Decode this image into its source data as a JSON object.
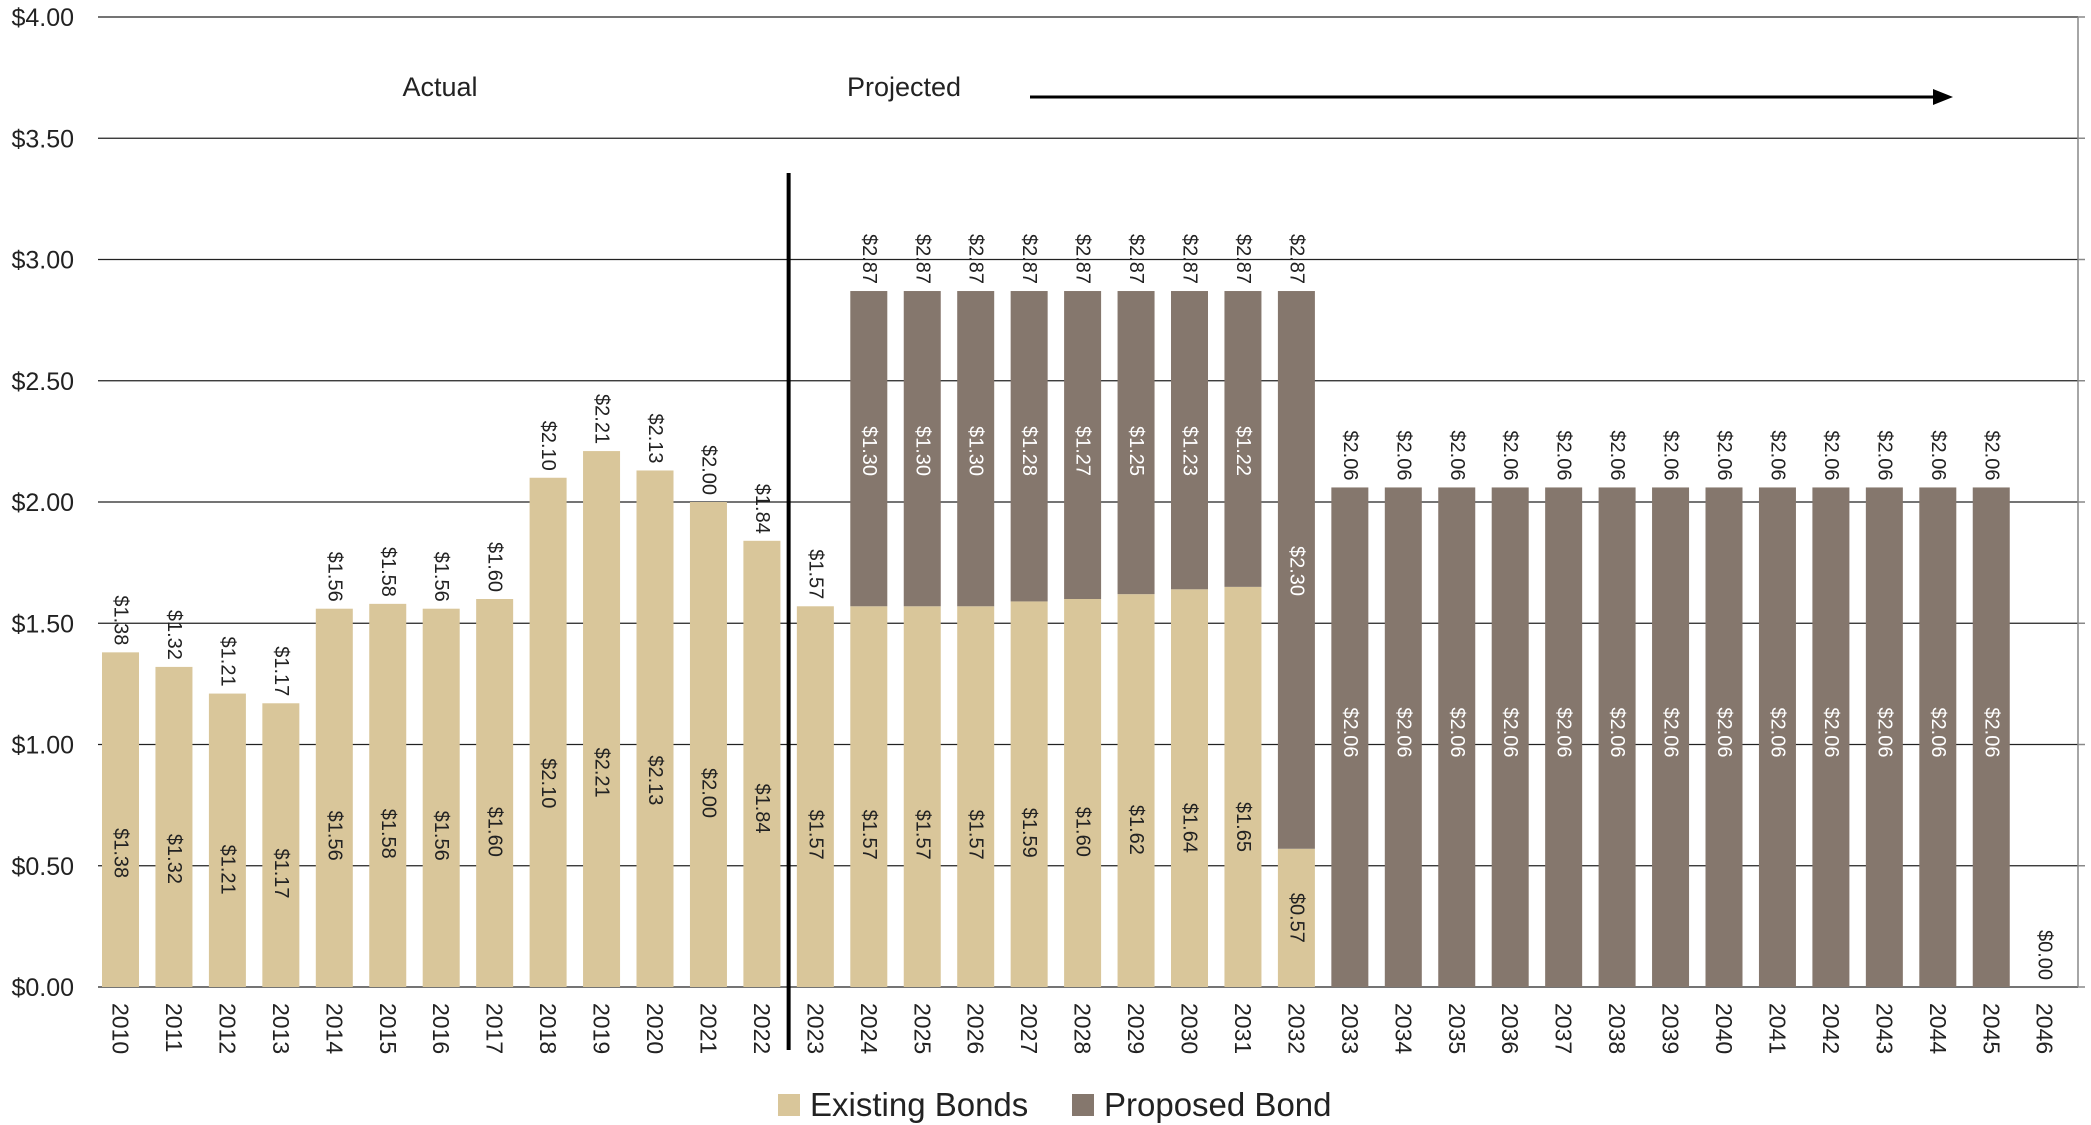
{
  "chart_data": {
    "type": "bar",
    "stacked": true,
    "categories": [
      "2010",
      "2011",
      "2012",
      "2013",
      "2014",
      "2015",
      "2016",
      "2017",
      "2018",
      "2019",
      "2020",
      "2021",
      "2022",
      "2023",
      "2024",
      "2025",
      "2026",
      "2027",
      "2028",
      "2029",
      "2030",
      "2031",
      "2032",
      "2033",
      "2034",
      "2035",
      "2036",
      "2037",
      "2038",
      "2039",
      "2040",
      "2041",
      "2042",
      "2043",
      "2044",
      "2045",
      "2046"
    ],
    "series": [
      {
        "name": "Existing Bonds",
        "color": "#d9c69a",
        "values": [
          1.38,
          1.32,
          1.21,
          1.17,
          1.56,
          1.58,
          1.56,
          1.6,
          2.1,
          2.21,
          2.13,
          2.0,
          1.84,
          1.57,
          1.57,
          1.57,
          1.57,
          1.59,
          1.6,
          1.62,
          1.64,
          1.65,
          0.57,
          0,
          0,
          0,
          0,
          0,
          0,
          0,
          0,
          0,
          0,
          0,
          0,
          0,
          0
        ],
        "labels": [
          "$1.38",
          "$1.32",
          "$1.21",
          "$1.17",
          "$1.56",
          "$1.58",
          "$1.56",
          "$1.60",
          "$2.10",
          "$2.21",
          "$2.13",
          "$2.00",
          "$1.84",
          "$1.57",
          "$1.57",
          "$1.57",
          "$1.57",
          "$1.59",
          "$1.60",
          "$1.62",
          "$1.64",
          "$1.65",
          "$0.57",
          "",
          "",
          "",
          "",
          "",
          "",
          "",
          "",
          "",
          "",
          "",
          "",
          "",
          ""
        ]
      },
      {
        "name": "Proposed Bond",
        "color": "#85776d",
        "values": [
          0,
          0,
          0,
          0,
          0,
          0,
          0,
          0,
          0,
          0,
          0,
          0,
          0,
          0,
          1.3,
          1.3,
          1.3,
          1.28,
          1.27,
          1.25,
          1.23,
          1.22,
          2.3,
          2.06,
          2.06,
          2.06,
          2.06,
          2.06,
          2.06,
          2.06,
          2.06,
          2.06,
          2.06,
          2.06,
          2.06,
          2.06,
          0
        ],
        "labels": [
          "",
          "",
          "",
          "",
          "",
          "",
          "",
          "",
          "",
          "",
          "",
          "",
          "",
          "",
          "$1.30",
          "$1.30",
          "$1.30",
          "$1.28",
          "$1.27",
          "$1.25",
          "$1.23",
          "$1.22",
          "$2.30",
          "$2.06",
          "$2.06",
          "$2.06",
          "$2.06",
          "$2.06",
          "$2.06",
          "$2.06",
          "$2.06",
          "$2.06",
          "$2.06",
          "$2.06",
          "$2.06",
          "$2.06",
          ""
        ]
      }
    ],
    "totals": [
      "$1.38",
      "$1.32",
      "$1.21",
      "$1.17",
      "$1.56",
      "$1.58",
      "$1.56",
      "$1.60",
      "$2.10",
      "$2.21",
      "$2.13",
      "$2.00",
      "$1.84",
      "$1.57",
      "$2.87",
      "$2.87",
      "$2.87",
      "$2.87",
      "$2.87",
      "$2.87",
      "$2.87",
      "$2.87",
      "$2.87",
      "$2.06",
      "$2.06",
      "$2.06",
      "$2.06",
      "$2.06",
      "$2.06",
      "$2.06",
      "$2.06",
      "$2.06",
      "$2.06",
      "$2.06",
      "$2.06",
      "$2.06",
      "$0.00"
    ],
    "y_ticks": [
      "$0.00",
      "$0.50",
      "$1.00",
      "$1.50",
      "$2.00",
      "$2.50",
      "$3.00",
      "$3.50",
      "$4.00"
    ],
    "ylim": [
      0,
      4
    ],
    "grid": true,
    "legend_position": "bottom",
    "annotations": {
      "actual": "Actual",
      "projected": "Projected",
      "divider_after": "2022"
    }
  }
}
